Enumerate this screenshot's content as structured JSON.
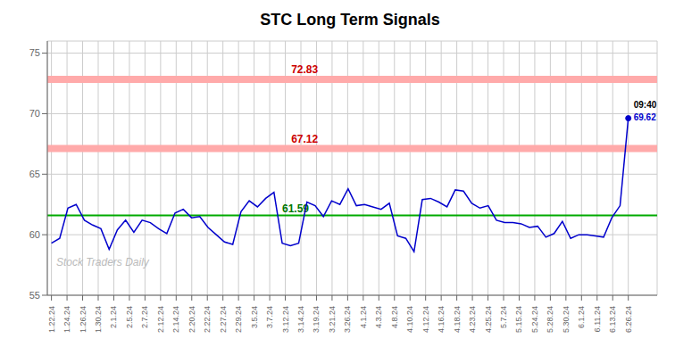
{
  "chart_data": {
    "type": "line",
    "title": "STC Long Term Signals",
    "x": [
      0,
      1,
      2,
      3,
      4,
      5,
      6,
      7,
      8,
      9,
      10,
      11,
      12,
      13,
      14,
      15,
      16,
      17,
      18,
      19,
      20,
      21,
      22,
      23,
      24,
      25,
      26,
      27,
      28,
      29,
      30,
      31,
      32,
      33,
      34,
      35,
      36,
      37,
      38,
      39,
      40,
      41,
      42,
      43,
      44,
      45,
      46,
      47,
      48,
      49,
      50,
      51,
      52,
      53,
      54,
      55,
      56,
      57,
      58,
      59,
      60,
      61,
      62,
      63,
      64,
      65,
      66,
      67,
      68,
      69,
      70
    ],
    "values": [
      59.3,
      59.7,
      62.2,
      62.5,
      61.2,
      60.8,
      60.5,
      58.8,
      60.4,
      61.2,
      60.2,
      61.2,
      61.0,
      60.5,
      60.1,
      61.8,
      62.1,
      61.4,
      61.5,
      60.6,
      60.0,
      59.4,
      59.2,
      61.9,
      62.8,
      62.3,
      63.0,
      63.5,
      59.3,
      59.1,
      59.3,
      62.7,
      62.4,
      61.5,
      62.8,
      62.5,
      63.8,
      62.4,
      62.5,
      62.3,
      62.1,
      62.6,
      59.9,
      59.7,
      58.6,
      62.9,
      63.0,
      62.7,
      62.3,
      63.7,
      63.6,
      62.6,
      62.2,
      62.4,
      61.2,
      61.0,
      61.0,
      60.9,
      60.6,
      60.7,
      59.8,
      60.1,
      61.1,
      59.7,
      60.0,
      60.0,
      59.9,
      59.8,
      61.4,
      62.4,
      69.62
    ],
    "color": "#0000cc",
    "xlim": [
      -0.5,
      73.5
    ],
    "xticks": [
      {
        "value": 0,
        "label": "1.22.24"
      },
      {
        "value": 1.8918918918918919,
        "label": "1.24.24"
      },
      {
        "value": 3.7837837837837838,
        "label": "1.26.24"
      },
      {
        "value": 5.675675675675676,
        "label": "1.30.24"
      },
      {
        "value": 7.5675675675675675,
        "label": "2.1.24"
      },
      {
        "value": 9.45945945945946,
        "label": "2.5.24"
      },
      {
        "value": 11.35135135135135,
        "label": "2.7.24"
      },
      {
        "value": 13.243243243243244,
        "label": "2.12.24"
      },
      {
        "value": 15.135135135135135,
        "label": "2.14.24"
      },
      {
        "value": 17.027027027027028,
        "label": "2.20.24"
      },
      {
        "value": 18.91891891891892,
        "label": "2.22.24"
      },
      {
        "value": 20.81081081081081,
        "label": "2.27.24"
      },
      {
        "value": 22.7027027027027,
        "label": "2.29.24"
      },
      {
        "value": 24.594594594594593,
        "label": "3.5.24"
      },
      {
        "value": 26.486486486486488,
        "label": "3.7.24"
      },
      {
        "value": 28.37837837837838,
        "label": "3.12.24"
      },
      {
        "value": 30.27027027027027,
        "label": "3.14.24"
      },
      {
        "value": 32.16216216216216,
        "label": "3.19.24"
      },
      {
        "value": 34.054054054054056,
        "label": "3.21.24"
      },
      {
        "value": 35.945945945945944,
        "label": "3.26.24"
      },
      {
        "value": 37.83783783783784,
        "label": "4.1.24"
      },
      {
        "value": 39.729729729729726,
        "label": "4.3.24"
      },
      {
        "value": 41.62162162162162,
        "label": "4.8.24"
      },
      {
        "value": 43.513513513513516,
        "label": "4.10.24"
      },
      {
        "value": 45.4054054054054,
        "label": "4.12.24"
      },
      {
        "value": 47.2972972972973,
        "label": "4.16.24"
      },
      {
        "value": 49.189189189189186,
        "label": "4.18.24"
      },
      {
        "value": 51.08108108108108,
        "label": "4.23.24"
      },
      {
        "value": 52.972972972972975,
        "label": "4.25.24"
      },
      {
        "value": 54.86486486486486,
        "label": "5.7.24"
      },
      {
        "value": 56.75675675675676,
        "label": "5.15.24"
      },
      {
        "value": 58.648648648648646,
        "label": "5.24.24"
      },
      {
        "value": 60.54054054054054,
        "label": "5.28.24"
      },
      {
        "value": 62.432432432432435,
        "label": "5.30.24"
      },
      {
        "value": 64.32432432432432,
        "label": "6.1.24"
      },
      {
        "value": 66.21621621621621,
        "label": "6.11.24"
      },
      {
        "value": 68.10810810810811,
        "label": "6.13.24"
      },
      {
        "value": 70,
        "label": "6.26.24"
      }
    ],
    "ylim": [
      55,
      76
    ],
    "yticks": [
      55,
      60,
      65,
      70,
      75
    ],
    "grid": true,
    "reference_lines": [
      {
        "value": 72.83,
        "label": "72.83",
        "color": "#ffaaaa",
        "label_color": "#cc0000"
      },
      {
        "value": 67.12,
        "label": "67.12",
        "color": "#ffaaaa",
        "label_color": "#cc0000"
      },
      {
        "value": 61.59,
        "label": "61.59",
        "color": "#00aa00",
        "label_color": "#007700"
      }
    ],
    "annotations": [
      {
        "text": "09:40",
        "color": "#000000"
      },
      {
        "text": "69.62",
        "color": "#0000cc"
      }
    ],
    "watermark": {
      "text": "Stock Traders Daily",
      "color": "#bbbbbb"
    }
  }
}
